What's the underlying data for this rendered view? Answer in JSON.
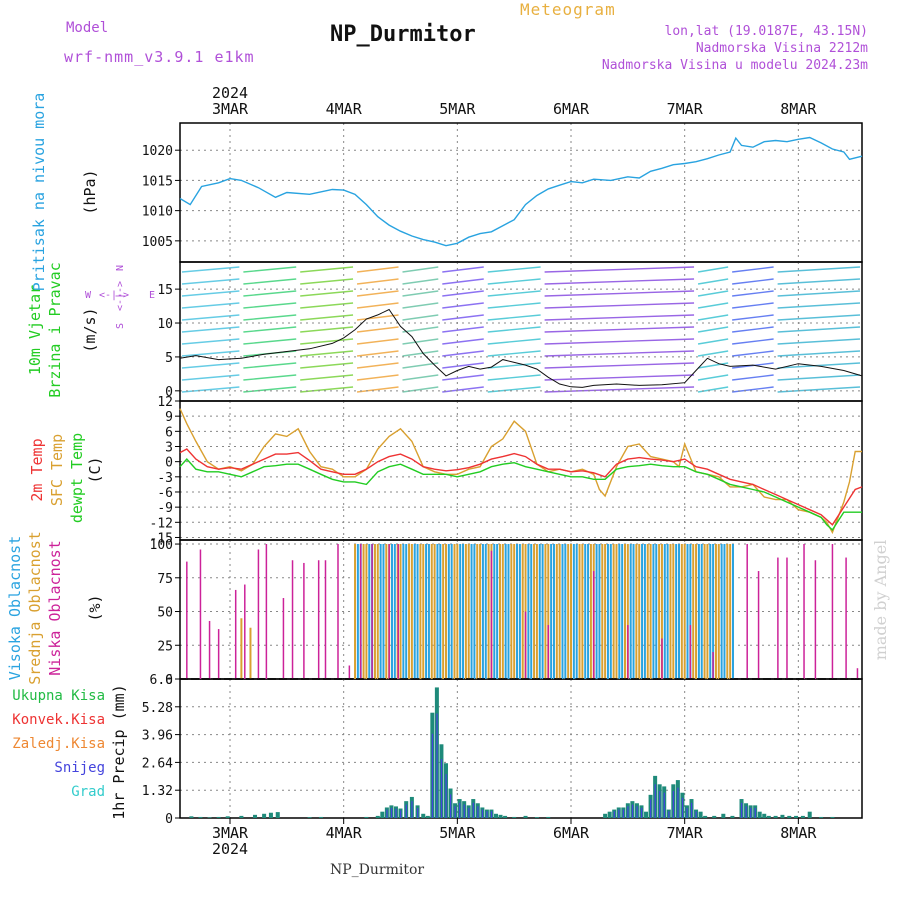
{
  "header": {
    "model_label": "Model",
    "model_name": "wrf-nmm_v3.9.1 e1km",
    "station": "NP_Durmitor",
    "title": "Meteogram",
    "location_1": "lon,lat (19.0187E, 43.15N)",
    "location_2": "Nadmorska Visina 2212m",
    "location_3": "Nadmorska Visina u modelu 2024.23m"
  },
  "footer": {
    "station": "NP_Durmitor"
  },
  "watermark": "made by Angel",
  "colors": {
    "pressure": "#29a3e0",
    "t2m": "#ee3333",
    "tsfc": "#d9a030",
    "dewpt": "#22cc22",
    "high_cloud": "#29a3e0",
    "mid_cloud": "#d9a030",
    "low_cloud": "#cc2299",
    "total_precip": "#22bb44",
    "conv_precip": "#ee3333",
    "frz_precip": "#ee8833",
    "snow": "#4444dd",
    "graupel": "#33cccc"
  },
  "chart_data": {
    "type": "meteogram",
    "x_axis": {
      "top_year": "2024",
      "bottom_year": "2024",
      "ticks": [
        "3MAR",
        "4MAR",
        "5MAR",
        "6MAR",
        "7MAR",
        "8MAR"
      ],
      "range_days": [
        2.56,
        8.56
      ],
      "tick_days": [
        3,
        4,
        5,
        6,
        7,
        8
      ]
    },
    "panels": [
      {
        "id": "pressure",
        "ylabel_lines": [
          "Pritisak na nivou mora"
        ],
        "unit": "(hPa)",
        "ylim": [
          1001.5,
          1024.5
        ],
        "yticks": [
          1005,
          1010,
          1015,
          1020
        ],
        "series": [
          {
            "key": "pressure",
            "x": [
              2.56,
              2.65,
              2.75,
              2.9,
              3.0,
              3.1,
              3.25,
              3.4,
              3.5,
              3.7,
              3.9,
              4.0,
              4.1,
              4.2,
              4.3,
              4.4,
              4.5,
              4.6,
              4.7,
              4.8,
              4.9,
              5.0,
              5.1,
              5.2,
              5.3,
              5.4,
              5.5,
              5.6,
              5.7,
              5.8,
              5.9,
              6.0,
              6.1,
              6.2,
              6.35,
              6.5,
              6.6,
              6.7,
              6.8,
              6.9,
              7.0,
              7.1,
              7.2,
              7.3,
              7.4,
              7.45,
              7.5,
              7.6,
              7.7,
              7.8,
              7.9,
              8.0,
              8.1,
              8.2,
              8.3,
              8.4,
              8.45,
              8.56
            ],
            "values": [
              1012,
              1011,
              1014,
              1014.6,
              1015.3,
              1015,
              1013.8,
              1012.2,
              1013,
              1012.7,
              1013.5,
              1013.4,
              1012.7,
              1011,
              1009,
              1007.6,
              1006.6,
              1005.8,
              1005.2,
              1004.8,
              1004.2,
              1004.6,
              1005.6,
              1006.2,
              1006.5,
              1007.5,
              1008.5,
              1011,
              1012.5,
              1013.6,
              1014.2,
              1014.8,
              1014.6,
              1015.2,
              1015.0,
              1015.6,
              1015.4,
              1016.5,
              1017,
              1017.6,
              1017.8,
              1018.1,
              1018.6,
              1019.2,
              1019.7,
              1022,
              1020.8,
              1020.5,
              1021.4,
              1021.6,
              1021.4,
              1021.8,
              1022.1,
              1021.2,
              1020.2,
              1019.7,
              1018.5,
              1019
            ]
          }
        ]
      },
      {
        "id": "wind",
        "ylabel_lines": [
          "10m Vjetar",
          "Brzina i Pravac"
        ],
        "unit": "(m/s)",
        "ylim": [
          -1.5,
          19
        ],
        "yticks": [
          0,
          5,
          10,
          15
        ],
        "compass": {
          "w": "W",
          "e": "E",
          "n": "N",
          "s": "S",
          "legend": "<-|->"
        },
        "series": [
          {
            "key": "speed_avg",
            "x": [
              2.56,
              2.7,
              2.9,
              3.1,
              3.3,
              3.5,
              3.7,
              3.9,
              4.0,
              4.1,
              4.2,
              4.3,
              4.4,
              4.5,
              4.6,
              4.7,
              4.8,
              4.9,
              5.0,
              5.1,
              5.2,
              5.3,
              5.4,
              5.5,
              5.6,
              5.7,
              5.8,
              5.9,
              6.0,
              6.1,
              6.2,
              6.4,
              6.6,
              6.8,
              7.0,
              7.1,
              7.2,
              7.3,
              7.4,
              7.6,
              7.8,
              8.0,
              8.2,
              8.4,
              8.56
            ],
            "values": [
              4.8,
              5.2,
              4.6,
              4.8,
              5.4,
              5.8,
              6.2,
              7.0,
              7.8,
              9.0,
              10.6,
              11.2,
              12.0,
              9.5,
              8.0,
              5.5,
              3.8,
              2.2,
              3.0,
              3.6,
              3.2,
              3.5,
              4.6,
              4.2,
              3.8,
              3.2,
              2.0,
              1.0,
              0.6,
              0.5,
              0.8,
              1.0,
              0.8,
              0.9,
              1.2,
              3.0,
              4.8,
              4.0,
              3.6,
              3.8,
              3.2,
              4.0,
              3.6,
              3.0,
              2.2
            ]
          }
        ]
      },
      {
        "id": "temperature",
        "ylabel_lines": [
          "2m Temp",
          "SFC Temp",
          "dewpt Temp"
        ],
        "unit": "(C)",
        "ylim": [
          -15.5,
          12
        ],
        "yticks": [
          12,
          9,
          6,
          3,
          0,
          -3,
          -6,
          -9,
          -12,
          -15
        ],
        "series": [
          {
            "key": "tsfc",
            "x": [
              2.56,
              2.62,
              2.7,
              2.8,
              2.9,
              3.0,
              3.1,
              3.2,
              3.3,
              3.4,
              3.5,
              3.6,
              3.7,
              3.8,
              3.9,
              4.0,
              4.1,
              4.2,
              4.3,
              4.4,
              4.5,
              4.6,
              4.7,
              4.8,
              4.9,
              5.0,
              5.1,
              5.2,
              5.3,
              5.4,
              5.5,
              5.6,
              5.7,
              5.8,
              5.9,
              6.0,
              6.1,
              6.2,
              6.25,
              6.3,
              6.4,
              6.5,
              6.6,
              6.7,
              6.8,
              6.9,
              6.95,
              7.0,
              7.1,
              7.2,
              7.3,
              7.4,
              7.5,
              7.6,
              7.7,
              7.8,
              7.9,
              8.0,
              8.1,
              8.2,
              8.25,
              8.3,
              8.4,
              8.45,
              8.5,
              8.56
            ],
            "values": [
              10.5,
              7.5,
              4,
              0,
              -1.5,
              -1,
              -1.8,
              -0.5,
              3,
              5.5,
              5,
              6.5,
              2,
              -1,
              -1.5,
              -3,
              -3,
              -1.5,
              2.5,
              5,
              6.5,
              4,
              -1,
              -2,
              -2.5,
              -2.5,
              -1.5,
              -1,
              3,
              4.5,
              8,
              6,
              -0.5,
              -2,
              -1.5,
              -2,
              -1.5,
              -2.5,
              -5.5,
              -6.8,
              -1,
              3,
              3.5,
              1,
              0.5,
              0,
              -1,
              3.5,
              -2,
              -2.5,
              -3,
              -5,
              -5,
              -4.5,
              -7,
              -7.5,
              -7.5,
              -9.5,
              -10,
              -11,
              -12,
              -14,
              -8,
              -4,
              2,
              2
            ]
          },
          {
            "key": "t2m",
            "x": [
              2.56,
              2.62,
              2.7,
              2.8,
              2.9,
              3.0,
              3.1,
              3.2,
              3.3,
              3.4,
              3.5,
              3.6,
              3.7,
              3.8,
              3.9,
              4.0,
              4.1,
              4.2,
              4.3,
              4.4,
              4.5,
              4.6,
              4.7,
              4.8,
              4.9,
              5.0,
              5.1,
              5.2,
              5.3,
              5.4,
              5.5,
              5.6,
              5.7,
              5.8,
              5.9,
              6.0,
              6.1,
              6.2,
              6.3,
              6.4,
              6.5,
              6.6,
              6.7,
              6.8,
              6.9,
              7.0,
              7.1,
              7.2,
              7.3,
              7.4,
              7.5,
              7.6,
              7.7,
              7.8,
              7.9,
              8.0,
              8.1,
              8.2,
              8.25,
              8.3,
              8.4,
              8.5,
              8.56
            ],
            "values": [
              1.8,
              2.5,
              0.5,
              -1,
              -1.5,
              -1.2,
              -1.5,
              -0.5,
              0.5,
              1.5,
              1.5,
              1.8,
              0.2,
              -1.5,
              -2,
              -2.5,
              -2.5,
              -1.5,
              0,
              1,
              1.5,
              0.5,
              -1,
              -1.5,
              -1.8,
              -1.6,
              -1.2,
              -0.5,
              0.5,
              1,
              1.6,
              1,
              -0.5,
              -1.5,
              -1.5,
              -2,
              -1.8,
              -2.2,
              -3,
              -0.5,
              0.5,
              0.8,
              0.5,
              0.3,
              0,
              0.5,
              -1,
              -1.5,
              -2.5,
              -3.5,
              -4,
              -4.5,
              -5.5,
              -6.5,
              -7.5,
              -8.5,
              -9.5,
              -10.5,
              -11.5,
              -12.5,
              -9,
              -5.5,
              -5
            ]
          },
          {
            "key": "dewpt",
            "x": [
              2.56,
              2.62,
              2.7,
              2.8,
              2.9,
              3.0,
              3.1,
              3.2,
              3.3,
              3.4,
              3.5,
              3.6,
              3.7,
              3.8,
              3.9,
              4.0,
              4.1,
              4.2,
              4.3,
              4.4,
              4.5,
              4.6,
              4.7,
              4.8,
              4.9,
              5.0,
              5.1,
              5.2,
              5.3,
              5.4,
              5.5,
              5.6,
              5.7,
              5.8,
              5.9,
              6.0,
              6.1,
              6.2,
              6.3,
              6.4,
              6.5,
              6.6,
              6.7,
              6.8,
              6.9,
              7.0,
              7.1,
              7.2,
              7.3,
              7.4,
              7.5,
              7.6,
              7.7,
              7.8,
              7.9,
              8.0,
              8.1,
              8.2,
              8.25,
              8.3,
              8.4,
              8.5,
              8.56
            ],
            "values": [
              -1,
              0.5,
              -1.5,
              -2,
              -2,
              -2.5,
              -3,
              -2,
              -1,
              -0.8,
              -0.5,
              -0.5,
              -1.5,
              -2.5,
              -3.5,
              -4,
              -4,
              -4.5,
              -2,
              -1,
              -0.5,
              -1.5,
              -2.5,
              -2.5,
              -2.5,
              -3,
              -2.5,
              -2,
              -1,
              -0.5,
              -0.2,
              -1,
              -1.5,
              -2,
              -2.5,
              -3,
              -3,
              -3.5,
              -3.5,
              -1.5,
              -1,
              -0.8,
              -0.5,
              -0.8,
              -1,
              -1,
              -2,
              -2.5,
              -3.5,
              -4.5,
              -5,
              -5.5,
              -6,
              -7,
              -8,
              -9,
              -10,
              -11,
              -12.5,
              -13.5,
              -10,
              -10,
              -10
            ]
          }
        ]
      },
      {
        "id": "clouds",
        "ylabel_lines": [
          "Visoka Oblacnost",
          "Srednja Oblacnost",
          "Niska Oblacnost"
        ],
        "unit": "(%)",
        "ylim": [
          0,
          103
        ],
        "yticks": [
          0,
          25,
          50,
          75,
          100
        ],
        "low_bars_x": [
          2.62,
          2.74,
          2.82,
          2.9,
          3.05,
          3.13,
          3.25,
          3.32,
          3.47,
          3.55,
          3.65,
          3.78,
          3.84,
          3.95,
          4.05,
          4.15,
          4.25,
          4.4,
          4.48,
          5.3,
          5.6,
          5.8,
          6.2,
          6.5,
          6.8,
          7.05,
          7.25,
          7.55,
          7.65,
          7.82,
          7.9,
          8.05,
          8.15,
          8.3,
          8.42,
          8.52
        ],
        "low_bars_values": [
          87,
          96,
          43,
          37,
          66,
          70,
          96,
          100,
          60,
          88,
          86,
          88,
          88,
          100,
          10,
          100,
          100,
          100,
          100,
          95,
          50,
          40,
          80,
          40,
          30,
          40,
          20,
          100,
          80,
          90,
          90,
          100,
          88,
          100,
          90,
          8
        ],
        "mid_bars_x": [
          3.1,
          3.18
        ],
        "mid_bars_values": [
          45,
          38
        ],
        "overcast_range": [
          4.1,
          7.45
        ]
      },
      {
        "id": "precip",
        "ylabel_lines": [
          "1hr Precip (mm)"
        ],
        "legend_lines": [
          "Ukupna Kisa",
          "Konvek.Kisa",
          "Zaledj.Kisa",
          "Snijeg",
          "Grad"
        ],
        "ylim": [
          0,
          6.6
        ],
        "yticks": [
          0,
          1.32,
          2.64,
          3.96,
          5.28,
          6.6
        ],
        "ytick_labels": [
          "0",
          "1.32",
          "2.64",
          "3.96",
          "5.28",
          "6.6"
        ],
        "bars_x": [
          2.66,
          2.74,
          2.82,
          2.9,
          2.98,
          3.1,
          3.22,
          3.3,
          3.36,
          3.42,
          3.7,
          3.8,
          4.2,
          4.3,
          4.34,
          4.38,
          4.42,
          4.46,
          4.5,
          4.55,
          4.6,
          4.65,
          4.7,
          4.74,
          4.78,
          4.82,
          4.86,
          4.9,
          4.94,
          4.98,
          5.02,
          5.06,
          5.1,
          5.14,
          5.18,
          5.22,
          5.26,
          5.3,
          5.34,
          5.38,
          5.42,
          5.5,
          5.6,
          5.7,
          5.8,
          6.3,
          6.34,
          6.38,
          6.42,
          6.46,
          6.5,
          6.54,
          6.58,
          6.62,
          6.66,
          6.7,
          6.74,
          6.78,
          6.82,
          6.86,
          6.9,
          6.94,
          6.98,
          7.02,
          7.06,
          7.1,
          7.14,
          7.18,
          7.26,
          7.34,
          7.42,
          7.5,
          7.54,
          7.58,
          7.62,
          7.66,
          7.7,
          7.74,
          7.8,
          7.86,
          7.92,
          7.98,
          8.04,
          8.1,
          8.2,
          8.3
        ],
        "bars_values": [
          0.08,
          0.05,
          0.03,
          0.05,
          0.08,
          0.1,
          0.15,
          0.2,
          0.25,
          0.28,
          0.04,
          0.05,
          0.05,
          0.1,
          0.3,
          0.5,
          0.6,
          0.55,
          0.45,
          0.8,
          1.0,
          0.6,
          0.2,
          0.1,
          5.0,
          6.2,
          3.5,
          2.6,
          1.4,
          0.7,
          0.9,
          0.8,
          0.6,
          0.9,
          0.7,
          0.5,
          0.4,
          0.4,
          0.2,
          0.15,
          0.1,
          0.05,
          0.1,
          0.04,
          0.05,
          0.2,
          0.3,
          0.4,
          0.5,
          0.5,
          0.7,
          0.8,
          0.7,
          0.6,
          0.3,
          1.1,
          2.0,
          1.6,
          1.5,
          0.4,
          1.6,
          1.8,
          1.2,
          0.6,
          0.9,
          0.4,
          0.3,
          0.1,
          0.1,
          0.2,
          0.1,
          0.9,
          0.7,
          0.6,
          0.6,
          0.3,
          0.2,
          0.1,
          0.1,
          0.15,
          0.1,
          0.1,
          0.1,
          0.3,
          0.05,
          0.05
        ]
      }
    ]
  }
}
